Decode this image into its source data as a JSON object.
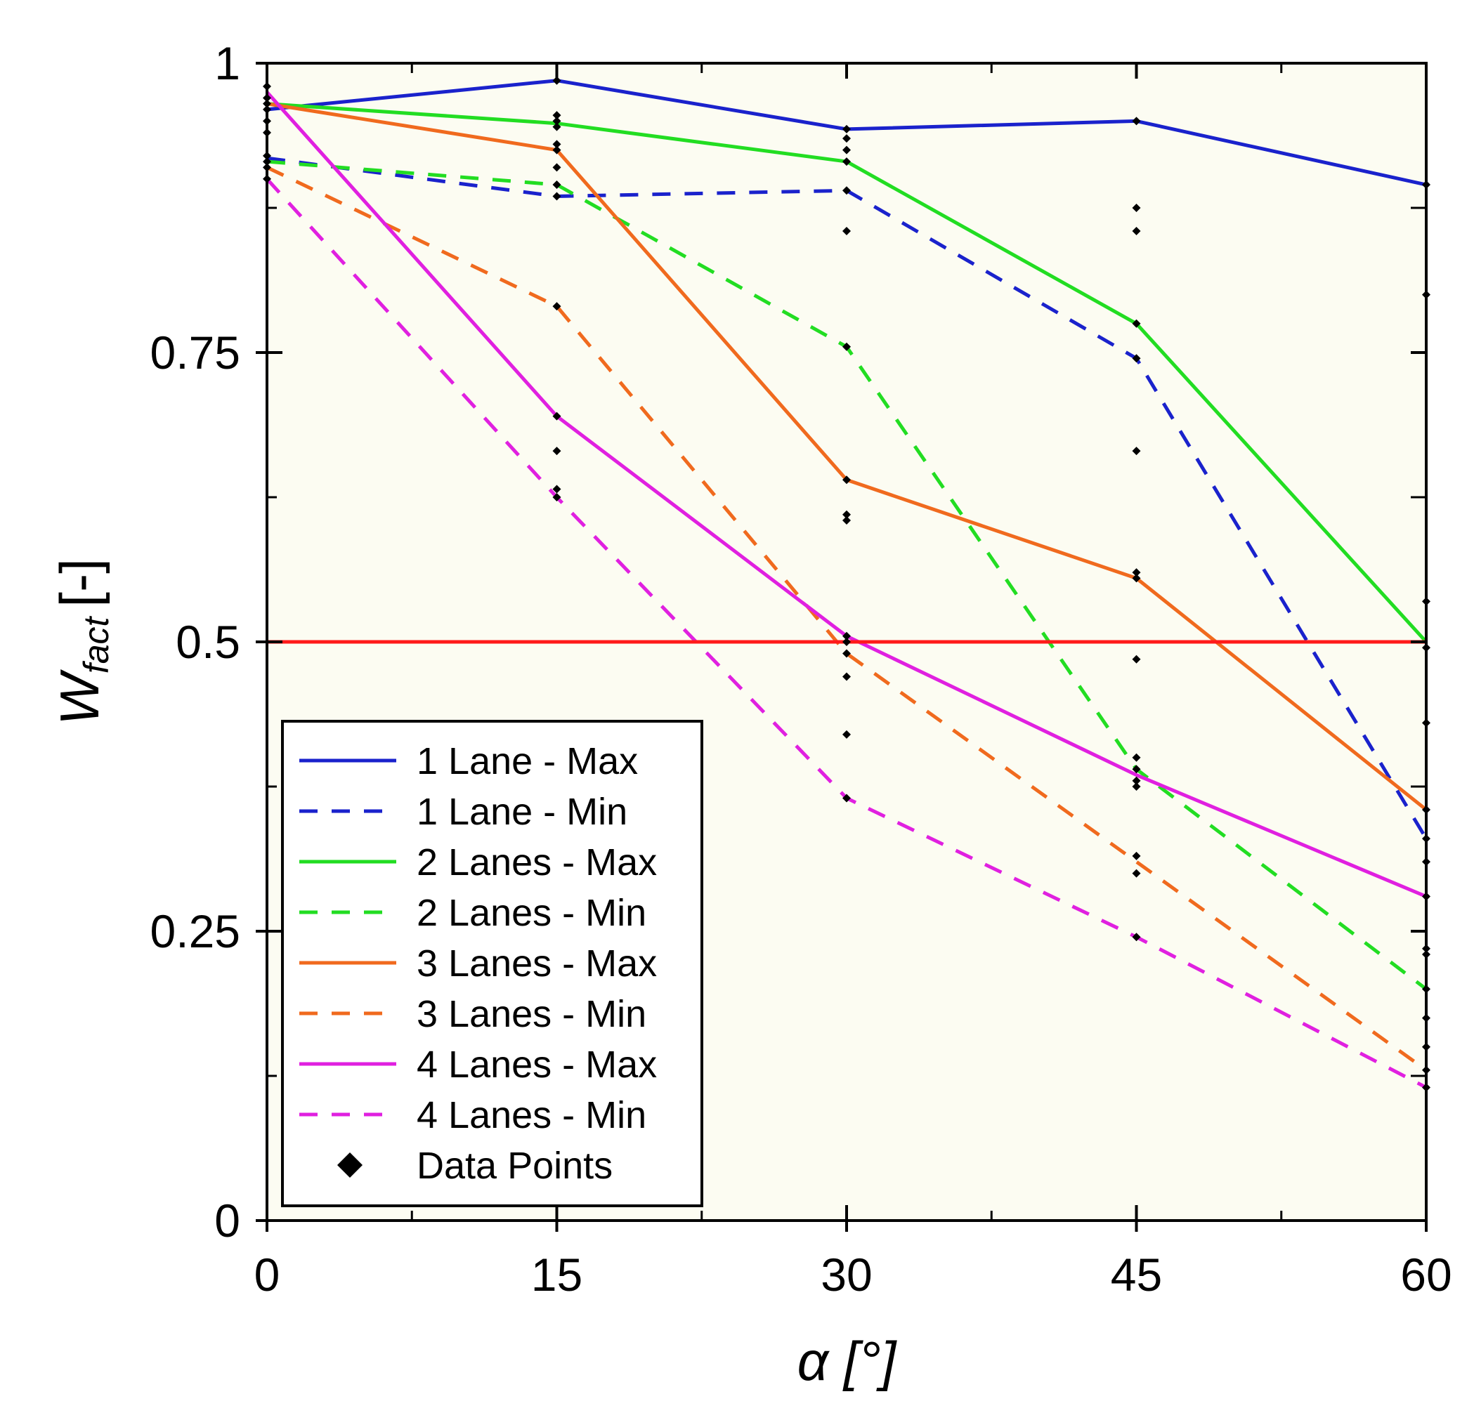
{
  "chart_data": {
    "type": "line",
    "title": "",
    "xlabel": "α [°]",
    "ylabel": {
      "main": "W",
      "subscript": "fact",
      "unit": "[-]"
    },
    "x": [
      0,
      15,
      30,
      45,
      60
    ],
    "xlim": [
      0,
      60
    ],
    "ylim": [
      0,
      1
    ],
    "xticks": [
      "0",
      "15",
      "30",
      "45",
      "60"
    ],
    "yticks": [
      {
        "value": 0,
        "label": "0"
      },
      {
        "value": 0.25,
        "label": "0.25"
      },
      {
        "value": 0.5,
        "label": "0.5"
      },
      {
        "value": 0.75,
        "label": "0.75"
      },
      {
        "value": 1,
        "label": "1"
      }
    ],
    "minor_yticks": [
      0.125,
      0.375,
      0.625,
      0.875
    ],
    "minor_xticks": [
      7.5,
      22.5,
      37.5,
      52.5
    ],
    "grid": false,
    "plot_background": "#fcfcf2",
    "reference_line": {
      "y": 0.5,
      "color": "#ff1a1a"
    },
    "series": [
      {
        "name": "1 Lane - Max",
        "color": "#1a22cc",
        "dashed": false,
        "values": [
          0.96,
          0.985,
          0.943,
          0.95,
          0.895
        ]
      },
      {
        "name": "1 Lane - Min",
        "color": "#1a22cc",
        "dashed": true,
        "values": [
          0.918,
          0.885,
          0.89,
          0.745,
          0.33
        ]
      },
      {
        "name": "2 Lanes - Max",
        "color": "#22dd22",
        "dashed": false,
        "values": [
          0.965,
          0.948,
          0.915,
          0.775,
          0.5
        ]
      },
      {
        "name": "2 Lanes - Min",
        "color": "#22dd22",
        "dashed": true,
        "values": [
          0.915,
          0.895,
          0.755,
          0.39,
          0.2
        ]
      },
      {
        "name": "3 Lanes - Max",
        "color": "#f06a1e",
        "dashed": false,
        "values": [
          0.965,
          0.925,
          0.64,
          0.555,
          0.355
        ]
      },
      {
        "name": "3 Lanes - Min",
        "color": "#f06a1e",
        "dashed": true,
        "values": [
          0.91,
          0.79,
          0.49,
          0.31,
          0.13
        ]
      },
      {
        "name": "4 Lanes - Max",
        "color": "#e020e0",
        "dashed": false,
        "values": [
          0.975,
          0.695,
          0.505,
          0.385,
          0.28
        ]
      },
      {
        "name": "4 Lanes - Min",
        "color": "#e020e0",
        "dashed": true,
        "values": [
          0.9,
          0.625,
          0.365,
          0.245,
          0.115
        ]
      }
    ],
    "data_points": {
      "name": "Data Points",
      "marker": "diamond",
      "color": "#000000",
      "points": [
        [
          0,
          0.98
        ],
        [
          0,
          0.97
        ],
        [
          0,
          0.965
        ],
        [
          0,
          0.96
        ],
        [
          0,
          0.95
        ],
        [
          0,
          0.94
        ],
        [
          0,
          0.92
        ],
        [
          0,
          0.915
        ],
        [
          0,
          0.91
        ],
        [
          0,
          0.9
        ],
        [
          15,
          0.985
        ],
        [
          15,
          0.955
        ],
        [
          15,
          0.95
        ],
        [
          15,
          0.945
        ],
        [
          15,
          0.93
        ],
        [
          15,
          0.925
        ],
        [
          15,
          0.91
        ],
        [
          15,
          0.895
        ],
        [
          15,
          0.885
        ],
        [
          15,
          0.79
        ],
        [
          15,
          0.695
        ],
        [
          15,
          0.665
        ],
        [
          15,
          0.632
        ],
        [
          15,
          0.625
        ],
        [
          30,
          0.943
        ],
        [
          30,
          0.935
        ],
        [
          30,
          0.925
        ],
        [
          30,
          0.915
        ],
        [
          30,
          0.89
        ],
        [
          30,
          0.855
        ],
        [
          30,
          0.755
        ],
        [
          30,
          0.64
        ],
        [
          30,
          0.61
        ],
        [
          30,
          0.605
        ],
        [
          30,
          0.505
        ],
        [
          30,
          0.5
        ],
        [
          30,
          0.49
        ],
        [
          30,
          0.47
        ],
        [
          30,
          0.42
        ],
        [
          30,
          0.365
        ],
        [
          45,
          0.95
        ],
        [
          45,
          0.875
        ],
        [
          45,
          0.855
        ],
        [
          45,
          0.775
        ],
        [
          45,
          0.745
        ],
        [
          45,
          0.665
        ],
        [
          45,
          0.56
        ],
        [
          45,
          0.555
        ],
        [
          45,
          0.485
        ],
        [
          45,
          0.4
        ],
        [
          45,
          0.39
        ],
        [
          45,
          0.38
        ],
        [
          45,
          0.375
        ],
        [
          45,
          0.315
        ],
        [
          45,
          0.3
        ],
        [
          45,
          0.245
        ],
        [
          60,
          0.895
        ],
        [
          60,
          0.8
        ],
        [
          60,
          0.535
        ],
        [
          60,
          0.495
        ],
        [
          60,
          0.43
        ],
        [
          60,
          0.355
        ],
        [
          60,
          0.33
        ],
        [
          60,
          0.31
        ],
        [
          60,
          0.28
        ],
        [
          60,
          0.235
        ],
        [
          60,
          0.23
        ],
        [
          60,
          0.2
        ],
        [
          60,
          0.175
        ],
        [
          60,
          0.15
        ],
        [
          60,
          0.13
        ],
        [
          60,
          0.115
        ]
      ]
    },
    "legend": {
      "placement": "bottom-left"
    }
  }
}
